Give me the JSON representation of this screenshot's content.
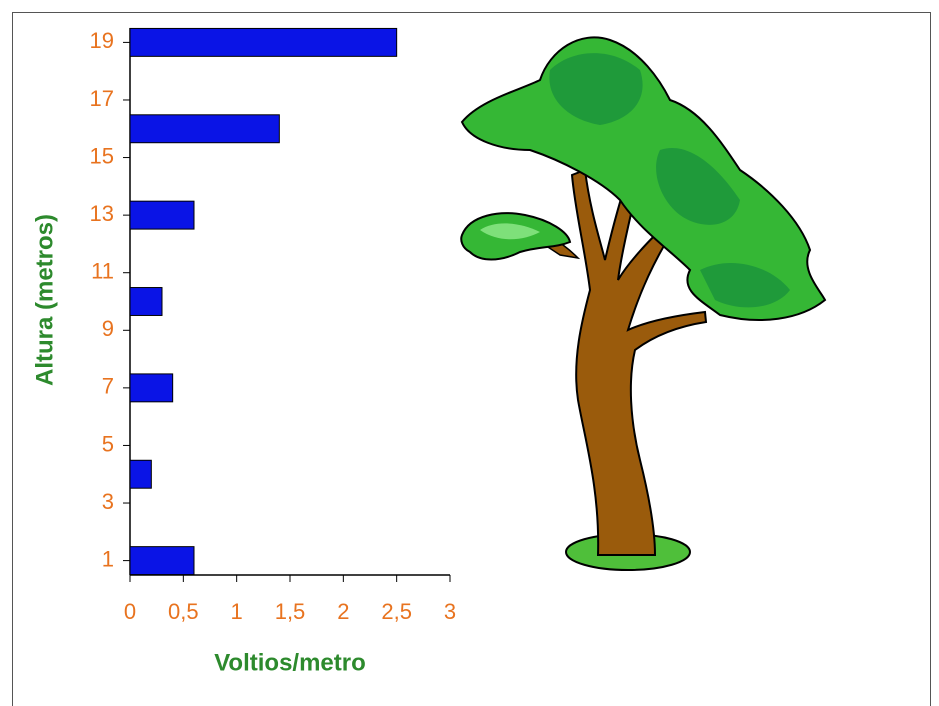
{
  "chart_data": {
    "type": "bar",
    "orientation": "horizontal",
    "x_label": "Voltios/metro",
    "y_label": "Altura (metros)",
    "y": [
      1,
      4,
      7,
      10,
      13,
      16,
      19
    ],
    "values": [
      0.6,
      0.2,
      0.4,
      0.3,
      0.6,
      1.4,
      2.5
    ],
    "color": "#0a14e6",
    "xlim": [
      0,
      3
    ],
    "xticks": [
      0,
      {
        "value": 0.5,
        "label": "0,5"
      },
      1,
      {
        "value": 1.5,
        "label": "1,5"
      },
      2,
      {
        "value": 2.5,
        "label": "2,5"
      },
      3
    ],
    "ylim": [
      0.5,
      19.5
    ],
    "yticks": [
      1,
      3,
      5,
      7,
      9,
      11,
      13,
      15,
      17,
      19
    ]
  }
}
